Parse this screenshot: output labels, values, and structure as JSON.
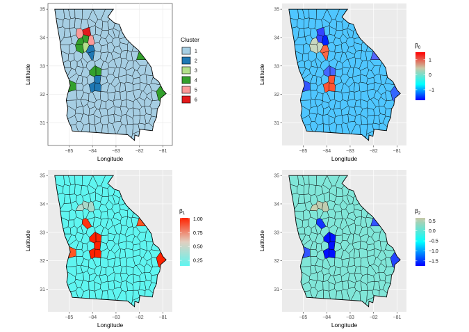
{
  "chart_data": [
    {
      "type": "map",
      "xlabel": "Longitude",
      "ylabel": "Latitude",
      "xlim": [
        -85.9,
        -80.6
      ],
      "ylim": [
        30.2,
        35.2
      ],
      "xticks": [
        -85,
        -84,
        -83,
        -82,
        -81
      ],
      "yticks": [
        31,
        32,
        33,
        34,
        35
      ],
      "background": "#ffffff",
      "grid": true,
      "frame": true,
      "base_fill": "#a6cee3",
      "legend": {
        "kind": "categorical",
        "title": "Cluster",
        "entries": [
          {
            "label": "1",
            "color": "#a6cee3"
          },
          {
            "label": "2",
            "color": "#1f78b4"
          },
          {
            "label": "3",
            "color": "#b2df8a"
          },
          {
            "label": "4",
            "color": "#33a02c"
          },
          {
            "label": "5",
            "color": "#fb9a99"
          },
          {
            "label": "6",
            "color": "#e31a1c"
          }
        ]
      },
      "regions": [
        {
          "lon": -84.55,
          "lat": 33.95,
          "color": "#fb9a99"
        },
        {
          "lon": -84.15,
          "lat": 33.95,
          "color": "#fb9a99"
        },
        {
          "lon": -84.35,
          "lat": 34.05,
          "color": "#e31a1c"
        },
        {
          "lon": -84.45,
          "lat": 33.72,
          "color": "#e31a1c"
        },
        {
          "lon": -84.3,
          "lat": 33.75,
          "color": "#33a02c"
        },
        {
          "lon": -84.2,
          "lat": 33.7,
          "color": "#b2df8a"
        },
        {
          "lon": -84.05,
          "lat": 33.42,
          "color": "#1f78b4"
        },
        {
          "lon": -83.85,
          "lat": 32.8,
          "color": "#33a02c"
        },
        {
          "lon": -83.85,
          "lat": 32.4,
          "color": "#1f78b4"
        },
        {
          "lon": -85.0,
          "lat": 32.38,
          "color": "#33a02c"
        },
        {
          "lon": -81.95,
          "lat": 33.45,
          "color": "#33a02c"
        },
        {
          "lon": -81.1,
          "lat": 32.05,
          "color": "#33a02c"
        }
      ]
    },
    {
      "type": "map",
      "xlabel": "Longitude",
      "ylabel": "Latitude",
      "xlim": [
        -85.9,
        -80.6
      ],
      "ylim": [
        30.2,
        35.2
      ],
      "xticks": [
        -85,
        -84,
        -83,
        -82,
        -81
      ],
      "yticks": [
        31,
        32,
        33,
        34,
        35
      ],
      "background": "#ebebeb",
      "grid": true,
      "frame": false,
      "base_fill": "#4fc6ff",
      "legend": {
        "kind": "continuous",
        "title": "β",
        "title_sub": "0",
        "stops": [
          "#0000ff",
          "#00ffff",
          "#c8c8a8",
          "#ff0000"
        ],
        "range": [
          -1.7,
          1.5
        ],
        "ticks": [
          1,
          0,
          -1
        ],
        "tick_labels": [
          "1",
          "0",
          "−1"
        ]
      },
      "regions": [
        {
          "lon": -84.5,
          "lat": 33.75,
          "color": "#c8d8c0"
        },
        {
          "lon": -84.2,
          "lat": 33.95,
          "color": "#0022ff"
        },
        {
          "lon": -84.35,
          "lat": 34.05,
          "color": "#3344ff"
        },
        {
          "lon": -84.05,
          "lat": 33.55,
          "color": "#ff6644"
        },
        {
          "lon": -83.85,
          "lat": 32.45,
          "color": "#ff5533"
        },
        {
          "lon": -83.95,
          "lat": 32.85,
          "color": "#4466ff"
        },
        {
          "lon": -85.0,
          "lat": 32.38,
          "color": "#3355ff"
        },
        {
          "lon": -81.95,
          "lat": 33.45,
          "color": "#5566ff"
        },
        {
          "lon": -81.1,
          "lat": 32.05,
          "color": "#3366ff"
        }
      ]
    },
    {
      "type": "map",
      "xlabel": "Longitude",
      "ylabel": "Latitude",
      "xlim": [
        -85.9,
        -80.6
      ],
      "ylim": [
        30.2,
        35.2
      ],
      "xticks": [
        -85,
        -84,
        -83,
        -82,
        -81
      ],
      "yticks": [
        31,
        32,
        33,
        34,
        35
      ],
      "background": "#ebebeb",
      "grid": true,
      "frame": false,
      "base_fill": "#5ff5f0",
      "legend": {
        "kind": "continuous",
        "title": "β",
        "title_sub": "1",
        "stops": [
          "#5ff5f0",
          "#e2cfc0",
          "#ff2200"
        ],
        "range": [
          0.15,
          1.02
        ],
        "ticks": [
          1.0,
          0.75,
          0.5,
          0.25
        ],
        "tick_labels": [
          "1.00",
          "0.75",
          "0.50",
          "0.25"
        ]
      },
      "regions": [
        {
          "lon": -84.45,
          "lat": 33.9,
          "color": "#b4dccf"
        },
        {
          "lon": -84.15,
          "lat": 33.95,
          "color": "#a8d8ca"
        },
        {
          "lon": -84.35,
          "lat": 33.45,
          "color": "#ff3311"
        },
        {
          "lon": -83.95,
          "lat": 32.85,
          "color": "#ff2200"
        },
        {
          "lon": -83.85,
          "lat": 32.4,
          "color": "#ff2200"
        },
        {
          "lon": -85.0,
          "lat": 32.38,
          "color": "#ff5522"
        },
        {
          "lon": -81.95,
          "lat": 33.45,
          "color": "#ff5522"
        },
        {
          "lon": -81.1,
          "lat": 32.05,
          "color": "#ff2200"
        }
      ]
    },
    {
      "type": "map",
      "xlabel": "Longitude",
      "ylabel": "Latitude",
      "xlim": [
        -85.9,
        -80.6
      ],
      "ylim": [
        30.2,
        35.2
      ],
      "xticks": [
        -85,
        -84,
        -83,
        -82,
        -81
      ],
      "yticks": [
        31,
        32,
        33,
        34,
        35
      ],
      "background": "#ebebeb",
      "grid": true,
      "frame": false,
      "base_fill": "#80e6d8",
      "legend": {
        "kind": "continuous",
        "title": "β",
        "title_sub": "2",
        "stops": [
          "#0000ff",
          "#00ffff",
          "#c8c8a8"
        ],
        "range": [
          -1.75,
          0.65
        ],
        "ticks": [
          0.5,
          0,
          -0.5,
          -1.0,
          -1.5
        ],
        "tick_labels": [
          "0.5",
          "0.0",
          "−0.5",
          "−1.0",
          "−1.5"
        ]
      },
      "regions": [
        {
          "lon": -84.45,
          "lat": 33.9,
          "color": "#c8d0b0"
        },
        {
          "lon": -84.15,
          "lat": 33.95,
          "color": "#c0ccb0"
        },
        {
          "lon": -84.35,
          "lat": 33.45,
          "color": "#1133ff"
        },
        {
          "lon": -83.95,
          "lat": 32.85,
          "color": "#0011ff"
        },
        {
          "lon": -83.85,
          "lat": 32.4,
          "color": "#0011ff"
        },
        {
          "lon": -85.0,
          "lat": 32.38,
          "color": "#3355ff"
        },
        {
          "lon": -81.95,
          "lat": 33.45,
          "color": "#3355ff"
        },
        {
          "lon": -81.1,
          "lat": 32.05,
          "color": "#2244ff"
        }
      ]
    }
  ]
}
